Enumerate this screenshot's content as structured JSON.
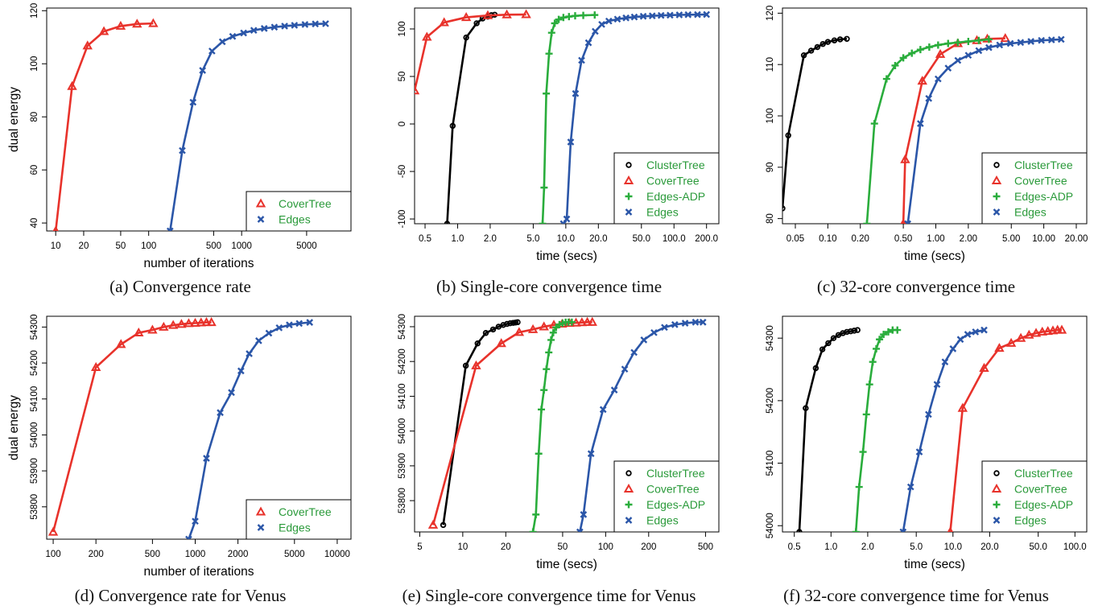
{
  "colors": {
    "ClusterTree": "#000000",
    "CoverTree": "#e8322b",
    "Edges-ADP": "#2aad3c",
    "Edges": "#2b56a8",
    "legend_text": "#2a9a3a"
  },
  "panel_labels": {
    "dual_energy": "dual energy",
    "iterations": "number of iterations",
    "time": "time (secs)"
  },
  "chart_data": [
    {
      "type": "line",
      "xscale": "log",
      "xlim": [
        8,
        15000
      ],
      "ylim": [
        37,
        121
      ],
      "xlabel": "number of iterations",
      "ylabel": "dual energy",
      "caption": "(a) Convergence rate",
      "xticks": [
        10,
        20,
        50,
        100,
        500,
        1000,
        5000
      ],
      "yticks": [
        40,
        60,
        80,
        100,
        120
      ],
      "legend": {
        "entries": [
          "CoverTree",
          "Edges"
        ],
        "placement": "bottom-right"
      },
      "series": [
        {
          "name": "CoverTree",
          "x": [
            10,
            15,
            22,
            33,
            50,
            75,
            112
          ],
          "y": [
            37,
            91.5,
            106.8,
            112.2,
            114.2,
            115.0,
            115.2
          ]
        },
        {
          "name": "Edges",
          "x": [
            170,
            230,
            300,
            380,
            480,
            620,
            800,
            1050,
            1350,
            1750,
            2250,
            2900,
            3700,
            4800,
            6200,
            8000
          ],
          "y": [
            37,
            67.3,
            85.5,
            97.5,
            104.8,
            108.3,
            110.3,
            111.6,
            112.6,
            113.3,
            113.8,
            114.2,
            114.5,
            114.8,
            115.0,
            115.1
          ]
        }
      ]
    },
    {
      "type": "line",
      "xscale": "log",
      "xlim": [
        0.4,
        260
      ],
      "ylim": [
        -105,
        122
      ],
      "xlabel": "time (secs)",
      "ylabel": "",
      "caption": "(b) Single-core convergence time",
      "xticks": [
        0.5,
        1.0,
        2.0,
        5.0,
        10.0,
        20.0,
        50.0,
        100.0,
        200.0
      ],
      "yticks": [
        -100,
        -50,
        0,
        50,
        100
      ],
      "legend": {
        "entries": [
          "ClusterTree",
          "CoverTree",
          "Edges-ADP",
          "Edges"
        ],
        "placement": "bottom-right"
      },
      "series": [
        {
          "name": "ClusterTree",
          "x": [
            0.8,
            0.9,
            1.2,
            1.5,
            1.7,
            1.9,
            2.05,
            2.2
          ],
          "y": [
            -105,
            -2,
            91,
            106,
            111,
            113,
            114.5,
            115
          ]
        },
        {
          "name": "CoverTree",
          "x": [
            0.4,
            0.52,
            0.75,
            1.2,
            1.9,
            2.85,
            4.3
          ],
          "y": [
            35,
            91.5,
            106.8,
            112.2,
            114.2,
            115,
            115.2
          ]
        },
        {
          "name": "Edges-ADP",
          "x": [
            6.1,
            6.3,
            6.6,
            7.0,
            7.4,
            7.9,
            8.6,
            9.5,
            10.7,
            12.2,
            14.5,
            18.5
          ],
          "y": [
            -105,
            -67,
            32,
            74,
            96,
            106,
            110,
            112,
            113,
            113.8,
            114.3,
            114.7
          ]
        },
        {
          "name": "Edges",
          "x": [
            9.5,
            10.2,
            11.1,
            12.3,
            14.0,
            16.2,
            18.7,
            21.5,
            25,
            30,
            36,
            43,
            52,
            63,
            76,
            92,
            112,
            135,
            165,
            200
          ],
          "y": [
            -105,
            -100,
            -19,
            32,
            67,
            85.5,
            97.5,
            104.8,
            108.3,
            110.3,
            111.6,
            112.6,
            113.3,
            113.8,
            114.2,
            114.5,
            114.8,
            115,
            115.1,
            115.2
          ]
        }
      ]
    },
    {
      "type": "line",
      "xscale": "log",
      "xlim": [
        0.038,
        25
      ],
      "ylim": [
        79,
        121
      ],
      "xlabel": "time (secs)",
      "ylabel": "",
      "caption": "(c) 32-core convergence time",
      "xticks": [
        0.05,
        0.1,
        0.2,
        0.5,
        1.0,
        2.0,
        5.0,
        10.0,
        20.0
      ],
      "xtick_labels": [
        "0.05",
        "0.10",
        "0.20",
        "0.50",
        "1.00",
        "2.00",
        "5.00",
        "10.00",
        "20.00"
      ],
      "yticks": [
        80,
        90,
        100,
        110,
        120
      ],
      "legend": {
        "entries": [
          "ClusterTree",
          "CoverTree",
          "Edges-ADP",
          "Edges"
        ],
        "placement": "bottom-right"
      },
      "series": [
        {
          "name": "ClusterTree",
          "x": [
            0.038,
            0.043,
            0.06,
            0.07,
            0.08,
            0.09,
            0.1,
            0.115,
            0.13,
            0.15
          ],
          "y": [
            82,
            96.2,
            111.8,
            112.7,
            113.4,
            114.0,
            114.4,
            114.7,
            114.9,
            115.0
          ]
        },
        {
          "name": "CoverTree",
          "x": [
            0.5,
            0.52,
            0.75,
            1.1,
            1.6,
            2.4,
            3.0,
            4.4
          ],
          "y": [
            79,
            91.5,
            106.8,
            112.0,
            114.1,
            114.7,
            115.0,
            115.1
          ]
        },
        {
          "name": "Edges-ADP",
          "x": [
            0.23,
            0.27,
            0.35,
            0.42,
            0.5,
            0.6,
            0.72,
            0.87,
            1.05,
            1.3,
            1.6,
            2.0,
            2.5,
            3.1
          ],
          "y": [
            79,
            98.5,
            107.2,
            109.8,
            111.3,
            112.2,
            112.9,
            113.4,
            113.8,
            114.1,
            114.3,
            114.5,
            114.7,
            114.9
          ]
        },
        {
          "name": "Edges",
          "x": [
            0.55,
            0.72,
            0.86,
            1.05,
            1.3,
            1.6,
            2.0,
            2.5,
            3.1,
            3.9,
            4.9,
            6.1,
            7.6,
            9.5,
            11.8,
            14.5
          ],
          "y": [
            79,
            98.5,
            103.4,
            107.2,
            109.3,
            110.8,
            111.8,
            112.7,
            113.3,
            113.8,
            114.1,
            114.3,
            114.5,
            114.7,
            114.8,
            114.9
          ]
        }
      ]
    },
    {
      "type": "line",
      "xscale": "log",
      "xlim": [
        90,
        12500
      ],
      "ylim": [
        53710,
        54330
      ],
      "xlabel": "number of iterations",
      "ylabel": "dual energy",
      "caption": "(d) Convergence rate for Venus",
      "xticks": [
        100,
        200,
        500,
        1000,
        2000,
        5000,
        10000
      ],
      "yticks": [
        53800,
        53900,
        54000,
        54100,
        54200,
        54300
      ],
      "legend": {
        "entries": [
          "CoverTree",
          "Edges"
        ],
        "placement": "bottom-right"
      },
      "series": [
        {
          "name": "CoverTree",
          "x": [
            100,
            200,
            300,
            400,
            500,
            600,
            700,
            800,
            900,
            1000,
            1100,
            1200,
            1300
          ],
          "y": [
            53730,
            54188,
            54252,
            54284,
            54292,
            54300,
            54305,
            54308,
            54310,
            54311,
            54312,
            54313,
            54313
          ]
        },
        {
          "name": "Edges",
          "x": [
            900,
            1000,
            1200,
            1500,
            1800,
            2100,
            2400,
            2800,
            3300,
            3900,
            4600,
            5400,
            6400
          ],
          "y": [
            53710,
            53760,
            53935,
            54062,
            54118,
            54178,
            54226,
            54262,
            54283,
            54298,
            54306,
            54310,
            54313
          ]
        }
      ]
    },
    {
      "type": "line",
      "xscale": "log",
      "xlim": [
        4.6,
        620
      ],
      "ylim": [
        53710,
        54330
      ],
      "xlabel": "time (secs)",
      "ylabel": "",
      "caption": "(e) Single-core convergence time for Venus",
      "xticks": [
        5,
        10,
        20,
        50,
        100,
        200,
        500
      ],
      "yticks": [
        53800,
        53900,
        54000,
        54100,
        54200,
        54300
      ],
      "legend": {
        "entries": [
          "ClusterTree",
          "CoverTree",
          "Edges-ADP",
          "Edges"
        ],
        "placement": "bottom-right"
      },
      "series": [
        {
          "name": "ClusterTree",
          "x": [
            7.3,
            10.5,
            12.7,
            14.5,
            16.3,
            17.8,
            19.2,
            20.4,
            21.5,
            22.5,
            23.4,
            24.2
          ],
          "y": [
            53730,
            54188,
            54252,
            54282,
            54292,
            54300,
            54305,
            54308,
            54310,
            54311,
            54312,
            54313
          ]
        },
        {
          "name": "CoverTree",
          "x": [
            6.2,
            12.4,
            18.6,
            24.8,
            31,
            37,
            43.4,
            49.6,
            55.8,
            62,
            68.2,
            74.4,
            80.6
          ],
          "y": [
            53730,
            54188,
            54252,
            54284,
            54292,
            54300,
            54305,
            54308,
            54310,
            54311,
            54312,
            54313,
            54313
          ]
        },
        {
          "name": "Edges-ADP",
          "x": [
            31,
            32.5,
            34,
            35.5,
            37,
            38.5,
            40,
            41.5,
            43,
            45,
            47.5,
            50,
            52.5,
            55,
            58
          ],
          "y": [
            53710,
            53760,
            53935,
            54062,
            54118,
            54178,
            54226,
            54262,
            54283,
            54298,
            54306,
            54310,
            54313,
            54313,
            54313
          ]
        },
        {
          "name": "Edges",
          "x": [
            66,
            70,
            79,
            96,
            115,
            136,
            158,
            185,
            218,
            258,
            305,
            360,
            425,
            480
          ],
          "y": [
            53710,
            53760,
            53935,
            54062,
            54118,
            54178,
            54226,
            54262,
            54283,
            54298,
            54306,
            54310,
            54313,
            54313
          ]
        }
      ]
    },
    {
      "type": "line",
      "xscale": "log",
      "xlim": [
        0.4,
        125
      ],
      "ylim": [
        53990,
        54335
      ],
      "xlabel": "time (secs)",
      "ylabel": "",
      "caption": "(f) 32-core convergence time for Venus",
      "xticks": [
        0.5,
        1.0,
        2.0,
        5.0,
        10.0,
        20.0,
        50.0,
        100.0
      ],
      "yticks": [
        54000,
        54100,
        54200,
        54300
      ],
      "legend": {
        "entries": [
          "ClusterTree",
          "CoverTree",
          "Edges-ADP",
          "Edges"
        ],
        "placement": "bottom-right"
      },
      "series": [
        {
          "name": "ClusterTree",
          "x": [
            0.55,
            0.62,
            0.75,
            0.85,
            0.95,
            1.05,
            1.15,
            1.25,
            1.35,
            1.45,
            1.55,
            1.65
          ],
          "y": [
            53990,
            54188,
            54252,
            54282,
            54292,
            54300,
            54305,
            54308,
            54310,
            54311,
            54312,
            54313
          ]
        },
        {
          "name": "CoverTree",
          "x": [
            9.5,
            12,
            18,
            24,
            30,
            36,
            42,
            48,
            54,
            60,
            66,
            72,
            78
          ],
          "y": [
            53990,
            54188,
            54252,
            54284,
            54292,
            54300,
            54305,
            54308,
            54310,
            54311,
            54312,
            54313,
            54313
          ]
        },
        {
          "name": "Edges-ADP",
          "x": [
            1.6,
            1.7,
            1.83,
            1.95,
            2.07,
            2.2,
            2.35,
            2.5,
            2.7,
            2.95,
            3.2,
            3.5
          ],
          "y": [
            53990,
            54062,
            54118,
            54178,
            54226,
            54262,
            54283,
            54298,
            54306,
            54310,
            54313,
            54313
          ]
        },
        {
          "name": "Edges",
          "x": [
            3.9,
            4.5,
            5.3,
            6.3,
            7.4,
            8.6,
            10,
            11.5,
            13.2,
            15.3,
            18
          ],
          "y": [
            53990,
            54062,
            54118,
            54178,
            54226,
            54262,
            54283,
            54298,
            54306,
            54310,
            54313
          ]
        }
      ]
    }
  ]
}
